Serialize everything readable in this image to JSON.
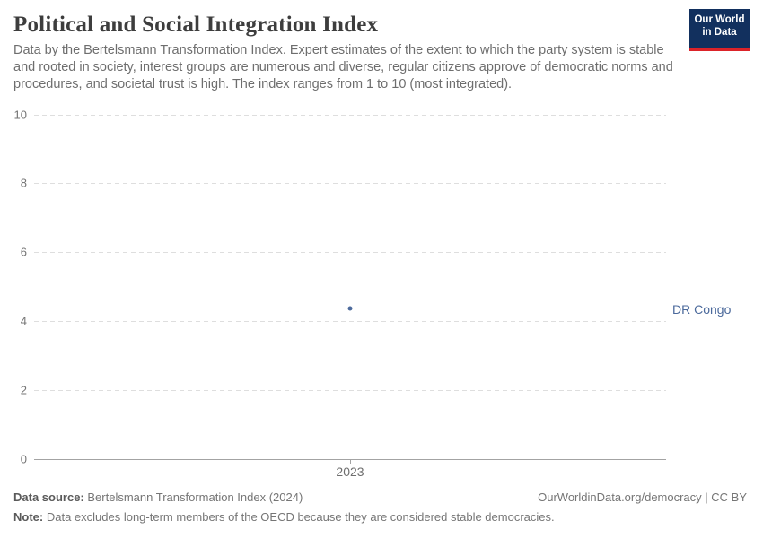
{
  "header": {
    "title": "Political and Social Integration Index",
    "subtitle": "Data by the Bertelsmann Transformation Index. Expert estimates of the extent to which the party system is stable and rooted in society, interest groups are numerous and diverse, regular citizens approve of democratic norms and procedures, and societal trust is high. The index ranges from 1 to 10 (most integrated).",
    "logo": {
      "line1": "Our World",
      "line2": "in Data",
      "bg_color": "#12305e",
      "accent_color": "#dc2329"
    }
  },
  "chart_data": {
    "type": "scatter",
    "title": "Political and Social Integration Index",
    "x": [
      "2023"
    ],
    "series": [
      {
        "name": "DR Congo",
        "values": [
          4.35
        ],
        "color": "#4c6a9c"
      }
    ],
    "xlabel": "",
    "ylabel": "",
    "ylim": [
      0,
      10
    ],
    "yticks": [
      0,
      2,
      4,
      6,
      8,
      10
    ],
    "xticks": [
      "2023"
    ],
    "grid": "horizontal-dashed",
    "legend_position": "right-of-plot-entity-labels"
  },
  "footer": {
    "datasource_label": "Data source:",
    "datasource_value": "Bertelsmann Transformation Index (2024)",
    "attribution": "OurWorldinData.org/democracy | CC BY",
    "note_label": "Note:",
    "note_value": "Data excludes long-term members of the OECD because they are considered stable democracies."
  }
}
